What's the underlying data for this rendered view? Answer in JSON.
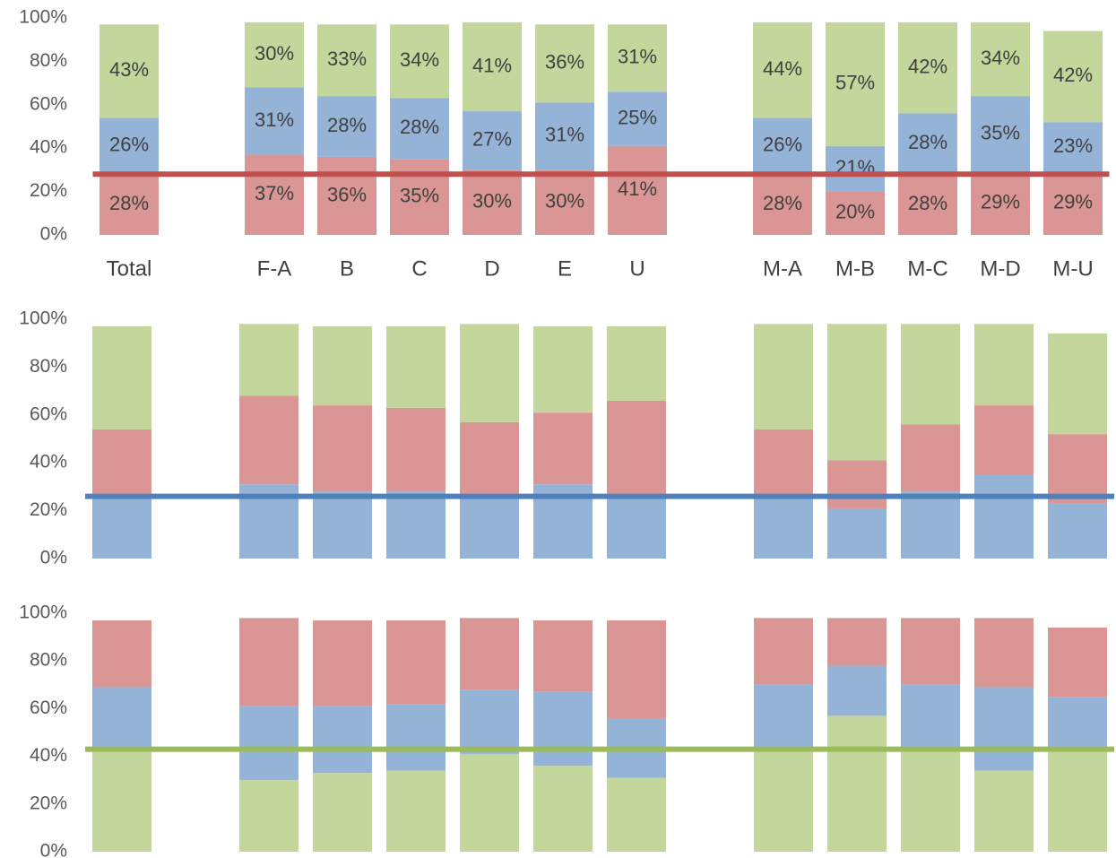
{
  "chart_data": [
    {
      "type": "stacked_bar",
      "categories": [
        "Total",
        null,
        "F-A",
        "B",
        "C",
        "D",
        "E",
        "U",
        null,
        "M-A",
        "M-B",
        "M-C",
        "M-D",
        "M-U"
      ],
      "series": [
        {
          "color": "#d99694",
          "values": [
            28,
            null,
            37,
            36,
            35,
            30,
            30,
            41,
            null,
            28,
            20,
            28,
            29,
            29
          ],
          "value_labels": [
            "28%",
            null,
            "37%",
            "36%",
            "35%",
            "30%",
            "30%",
            "41%",
            null,
            "28%",
            "20%",
            "28%",
            "29%",
            "29%"
          ]
        },
        {
          "color": "#95b3d7",
          "values": [
            26,
            null,
            31,
            28,
            28,
            27,
            31,
            25,
            null,
            26,
            21,
            28,
            35,
            23
          ],
          "value_labels": [
            "26%",
            null,
            "31%",
            "28%",
            "28%",
            "27%",
            "31%",
            "25%",
            null,
            "26%",
            "21%",
            "28%",
            "35%",
            "23%"
          ]
        },
        {
          "color": "#c3d69b",
          "values": [
            43,
            null,
            30,
            33,
            34,
            41,
            36,
            31,
            null,
            44,
            57,
            42,
            34,
            42
          ],
          "value_labels": [
            "43%",
            null,
            "30%",
            "33%",
            "34%",
            "41%",
            "36%",
            "31%",
            null,
            "44%",
            "57%",
            "42%",
            "34%",
            "42%"
          ]
        }
      ],
      "ylim": [
        0,
        100
      ],
      "yticks": [
        {
          "value": 0,
          "label": "0%"
        },
        {
          "value": 20,
          "label": "20%"
        },
        {
          "value": 40,
          "label": "40%"
        },
        {
          "value": 60,
          "label": "60%"
        },
        {
          "value": 80,
          "label": "80%"
        },
        {
          "value": 100,
          "label": "100%"
        }
      ],
      "reference_line": {
        "value": 28,
        "color": "#c0504d"
      }
    },
    {
      "type": "stacked_bar",
      "series": [
        {
          "color": "#95b3d7",
          "values": [
            26,
            null,
            31,
            28,
            28,
            27,
            31,
            25,
            null,
            26,
            21,
            28,
            35,
            23
          ]
        },
        {
          "color": "#d99694",
          "values": [
            28,
            null,
            37,
            36,
            35,
            30,
            30,
            41,
            null,
            28,
            20,
            28,
            29,
            29
          ]
        },
        {
          "color": "#c3d69b",
          "values": [
            43,
            null,
            30,
            33,
            34,
            41,
            36,
            31,
            null,
            44,
            57,
            42,
            34,
            42
          ]
        }
      ],
      "ylim": [
        0,
        100
      ],
      "yticks": [
        {
          "value": 0,
          "label": "0%"
        },
        {
          "value": 20,
          "label": "20%"
        },
        {
          "value": 40,
          "label": "40%"
        },
        {
          "value": 60,
          "label": "60%"
        },
        {
          "value": 80,
          "label": "80%"
        },
        {
          "value": 100,
          "label": "100%"
        }
      ],
      "reference_line": {
        "value": 26,
        "color": "#4f81bd"
      }
    },
    {
      "type": "stacked_bar",
      "series": [
        {
          "color": "#c3d69b",
          "values": [
            43,
            null,
            30,
            33,
            34,
            41,
            36,
            31,
            null,
            44,
            57,
            42,
            34,
            42
          ]
        },
        {
          "color": "#95b3d7",
          "values": [
            26,
            null,
            31,
            28,
            28,
            27,
            31,
            25,
            null,
            26,
            21,
            28,
            35,
            23
          ]
        },
        {
          "color": "#d99694",
          "values": [
            28,
            null,
            37,
            36,
            35,
            30,
            30,
            41,
            null,
            28,
            20,
            28,
            29,
            29
          ]
        }
      ],
      "ylim": [
        0,
        100
      ],
      "yticks": [
        {
          "value": 0,
          "label": "0%"
        },
        {
          "value": 20,
          "label": "20%"
        },
        {
          "value": 40,
          "label": "40%"
        },
        {
          "value": 60,
          "label": "60%"
        },
        {
          "value": 80,
          "label": "80%"
        },
        {
          "value": 100,
          "label": "100%"
        }
      ],
      "reference_line": {
        "value": 43,
        "color": "#9bbb59"
      }
    }
  ]
}
